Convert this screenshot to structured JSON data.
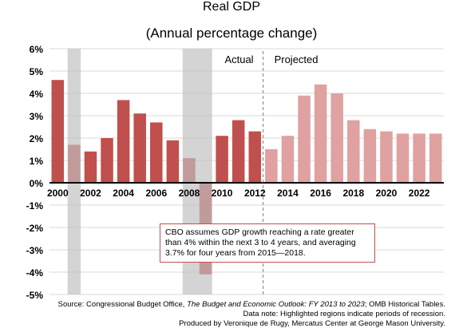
{
  "chart_data": {
    "type": "bar",
    "title": "Real GDP",
    "subtitle": "(Annual percentage change)",
    "xlabel": "",
    "ylabel": "",
    "ylim": [
      -5,
      6
    ],
    "yticks": [
      "6%",
      "5%",
      "4%",
      "3%",
      "2%",
      "1%",
      "0%",
      "-1%",
      "-2%",
      "-3%",
      "-4%",
      "-5%"
    ],
    "xtick_labels": [
      "2000",
      "2002",
      "2004",
      "2006",
      "2008",
      "2010",
      "2012",
      "2014",
      "2016",
      "2018",
      "2020",
      "2022"
    ],
    "x": [
      2000,
      2001,
      2002,
      2003,
      2004,
      2005,
      2006,
      2007,
      2008,
      2009,
      2010,
      2011,
      2012,
      2013,
      2014,
      2015,
      2016,
      2017,
      2018,
      2019,
      2020,
      2021,
      2022,
      2023
    ],
    "series": [
      {
        "name": "Actual",
        "color": "#c0504d",
        "x": [
          2000,
          2001,
          2002,
          2003,
          2004,
          2005,
          2006,
          2007,
          2008,
          2009,
          2010,
          2011,
          2012
        ],
        "values": [
          4.6,
          1.7,
          1.4,
          2.0,
          3.7,
          3.1,
          2.7,
          1.9,
          1.1,
          -4.1,
          2.1,
          2.8,
          2.3
        ]
      },
      {
        "name": "Projected",
        "color": "#e0a1a1",
        "x": [
          2013,
          2014,
          2015,
          2016,
          2017,
          2018,
          2019,
          2020,
          2021,
          2022,
          2023
        ],
        "values": [
          1.5,
          2.1,
          3.9,
          4.4,
          4.0,
          2.8,
          2.4,
          2.3,
          2.2,
          2.2,
          2.2
        ]
      }
    ],
    "recessions": [
      [
        2001,
        2001
      ],
      [
        2008,
        2009
      ]
    ],
    "divider_after": 2012,
    "grid": true,
    "annotation": "CBO assumes GDP growth reaching a rate greater than 4% within  the next 3 to 4 years, and averaging 3.7% for four years from 2015—2018.",
    "colors": {
      "actual": "#c0504d",
      "projected": "#e0a1a1",
      "recession": "#bfbfbf",
      "grid": "#d9d9d9"
    }
  },
  "footer": {
    "line1_prefix": "Source: Congressional Budget Office, ",
    "line1_italic": "The Budget and Economic Outlook: FY 2013 to 2023",
    "line1_suffix": "; OMB Historical Tables.",
    "line2": "Data note: Highlighted regions indicate periods of recession.",
    "line3": "Produced by Veronique de Rugy, Mercatus Center at George Mason University."
  }
}
